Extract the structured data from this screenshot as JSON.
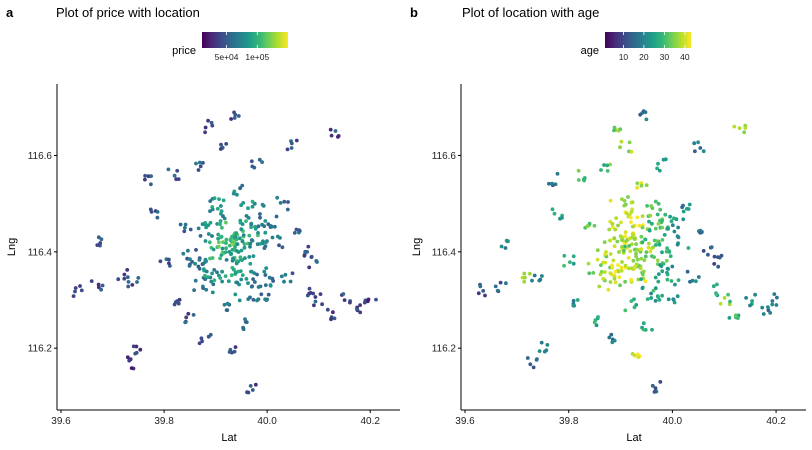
{
  "colors": {
    "viridis": [
      "#440154",
      "#482878",
      "#3e4a89",
      "#31688e",
      "#26828e",
      "#1f9e89",
      "#35b779",
      "#6ece58",
      "#b5de2b",
      "#fde725"
    ],
    "axis": "#000000",
    "background": "#ffffff"
  },
  "chart_data": [
    {
      "type": "scatter",
      "panel_label": "a",
      "title": "Plot of price with location",
      "xlabel": "Lat",
      "ylabel": "Lng",
      "xlim": [
        39.6,
        40.25
      ],
      "ylim": [
        116.08,
        116.74
      ],
      "xticks": [
        39.6,
        39.8,
        40.0,
        40.2
      ],
      "xtick_labels": [
        "39.6",
        "39.8",
        "40.0",
        "40.2"
      ],
      "yticks": [
        116.2,
        116.4,
        116.6
      ],
      "ytick_labels": [
        "116.2",
        "116.4",
        "116.6"
      ],
      "grid": false,
      "legend": {
        "title": "price",
        "position": "top",
        "range": [
          10000,
          150000
        ],
        "ticks": [
          50000,
          100000
        ],
        "tick_labels": [
          "5e+04",
          "1e+05"
        ]
      },
      "color_variable": "price",
      "points": [
        [
          39.63,
          116.32,
          40000
        ],
        [
          39.67,
          116.33,
          38000
        ],
        [
          39.68,
          116.42,
          42000
        ],
        [
          39.72,
          116.35,
          45000
        ],
        [
          39.74,
          116.34,
          47000
        ],
        [
          39.73,
          116.17,
          30000
        ],
        [
          39.75,
          116.2,
          33000
        ],
        [
          39.77,
          116.55,
          41000
        ],
        [
          39.78,
          116.48,
          46000
        ],
        [
          39.8,
          116.38,
          52000
        ],
        [
          39.82,
          116.3,
          48000
        ],
        [
          39.82,
          116.56,
          50000
        ],
        [
          39.84,
          116.45,
          55000
        ],
        [
          39.85,
          116.26,
          47000
        ],
        [
          39.86,
          116.38,
          62000
        ],
        [
          39.87,
          116.58,
          53000
        ],
        [
          39.88,
          116.34,
          70000
        ],
        [
          39.88,
          116.22,
          44000
        ],
        [
          39.89,
          116.44,
          78000
        ],
        [
          39.89,
          116.66,
          46000
        ],
        [
          39.9,
          116.36,
          85000
        ],
        [
          39.9,
          116.49,
          82000
        ],
        [
          39.91,
          116.41,
          95000
        ],
        [
          39.91,
          116.62,
          52000
        ],
        [
          39.92,
          116.4,
          110000
        ],
        [
          39.92,
          116.29,
          60000
        ],
        [
          39.93,
          116.45,
          105000
        ],
        [
          39.93,
          116.36,
          90000
        ],
        [
          39.93,
          116.19,
          42000
        ],
        [
          39.94,
          116.42,
          98000
        ],
        [
          39.94,
          116.53,
          70000
        ],
        [
          39.94,
          116.68,
          45000
        ],
        [
          39.95,
          116.38,
          88000
        ],
        [
          39.95,
          116.25,
          50000
        ],
        [
          39.96,
          116.44,
          92000
        ],
        [
          39.96,
          116.32,
          72000
        ],
        [
          39.97,
          116.48,
          80000
        ],
        [
          39.97,
          116.12,
          38000
        ],
        [
          39.98,
          116.4,
          75000
        ],
        [
          39.98,
          116.58,
          55000
        ],
        [
          39.99,
          116.35,
          66000
        ],
        [
          40.0,
          116.46,
          70000
        ],
        [
          40.0,
          116.3,
          58000
        ],
        [
          40.02,
          116.42,
          62000
        ],
        [
          40.03,
          116.5,
          57000
        ],
        [
          40.04,
          116.35,
          54000
        ],
        [
          40.05,
          116.62,
          48000
        ],
        [
          40.06,
          116.44,
          52000
        ],
        [
          40.07,
          116.4,
          50000
        ],
        [
          40.08,
          116.32,
          47000
        ],
        [
          40.09,
          116.38,
          45000
        ],
        [
          40.1,
          116.3,
          44000
        ],
        [
          40.12,
          116.27,
          43000
        ],
        [
          40.13,
          116.65,
          41000
        ],
        [
          40.15,
          116.3,
          40000
        ],
        [
          40.18,
          116.28,
          39000
        ],
        [
          40.2,
          116.3,
          38000
        ]
      ]
    },
    {
      "type": "scatter",
      "panel_label": "b",
      "title": "Plot of location with age",
      "xlabel": "Lat",
      "ylabel": "Lng",
      "xlim": [
        39.6,
        40.25
      ],
      "ylim": [
        116.08,
        116.74
      ],
      "xticks": [
        39.6,
        39.8,
        40.0,
        40.2
      ],
      "xtick_labels": [
        "39.6",
        "39.8",
        "40.0",
        "40.2"
      ],
      "yticks": [
        116.2,
        116.4,
        116.6
      ],
      "ytick_labels": [
        "116.2",
        "116.4",
        "116.6"
      ],
      "grid": false,
      "legend": {
        "title": "age",
        "position": "top",
        "range": [
          1,
          43
        ],
        "ticks": [
          10,
          20,
          30,
          40
        ],
        "tick_labels": [
          "10",
          "20",
          "30",
          "40"
        ]
      },
      "color_variable": "age",
      "points": [
        [
          39.63,
          116.32,
          12
        ],
        [
          39.67,
          116.33,
          14
        ],
        [
          39.68,
          116.42,
          18
        ],
        [
          39.72,
          116.35,
          40
        ],
        [
          39.74,
          116.34,
          22
        ],
        [
          39.73,
          116.17,
          15
        ],
        [
          39.75,
          116.2,
          20
        ],
        [
          39.77,
          116.55,
          16
        ],
        [
          39.78,
          116.48,
          24
        ],
        [
          39.8,
          116.38,
          28
        ],
        [
          39.82,
          116.3,
          22
        ],
        [
          39.82,
          116.56,
          30
        ],
        [
          39.84,
          116.45,
          33
        ],
        [
          39.85,
          116.26,
          25
        ],
        [
          39.86,
          116.38,
          36
        ],
        [
          39.87,
          116.58,
          31
        ],
        [
          39.88,
          116.34,
          38
        ],
        [
          39.88,
          116.22,
          20
        ],
        [
          39.89,
          116.44,
          40
        ],
        [
          39.89,
          116.66,
          34
        ],
        [
          39.9,
          116.36,
          42
        ],
        [
          39.9,
          116.49,
          37
        ],
        [
          39.91,
          116.41,
          39
        ],
        [
          39.91,
          116.62,
          35
        ],
        [
          39.92,
          116.4,
          33
        ],
        [
          39.92,
          116.29,
          30
        ],
        [
          39.93,
          116.45,
          41
        ],
        [
          39.93,
          116.36,
          38
        ],
        [
          39.93,
          116.19,
          42
        ],
        [
          39.94,
          116.42,
          36
        ],
        [
          39.94,
          116.53,
          40
        ],
        [
          39.94,
          116.68,
          18
        ],
        [
          39.95,
          116.38,
          35
        ],
        [
          39.95,
          116.25,
          28
        ],
        [
          39.96,
          116.44,
          30
        ],
        [
          39.96,
          116.32,
          26
        ],
        [
          39.97,
          116.48,
          32
        ],
        [
          39.97,
          116.12,
          15
        ],
        [
          39.98,
          116.4,
          29
        ],
        [
          39.98,
          116.58,
          27
        ],
        [
          39.99,
          116.35,
          24
        ],
        [
          40.0,
          116.46,
          25
        ],
        [
          40.0,
          116.3,
          21
        ],
        [
          40.02,
          116.42,
          22
        ],
        [
          40.03,
          116.5,
          20
        ],
        [
          40.04,
          116.35,
          18
        ],
        [
          40.05,
          116.62,
          17
        ],
        [
          40.06,
          116.44,
          16
        ],
        [
          40.07,
          116.4,
          14
        ],
        [
          40.08,
          116.32,
          26
        ],
        [
          40.09,
          116.38,
          13
        ],
        [
          40.1,
          116.3,
          34
        ],
        [
          40.12,
          116.27,
          28
        ],
        [
          40.13,
          116.65,
          40
        ],
        [
          40.15,
          116.3,
          22
        ],
        [
          40.18,
          116.28,
          18
        ],
        [
          40.2,
          116.3,
          16
        ]
      ]
    }
  ]
}
